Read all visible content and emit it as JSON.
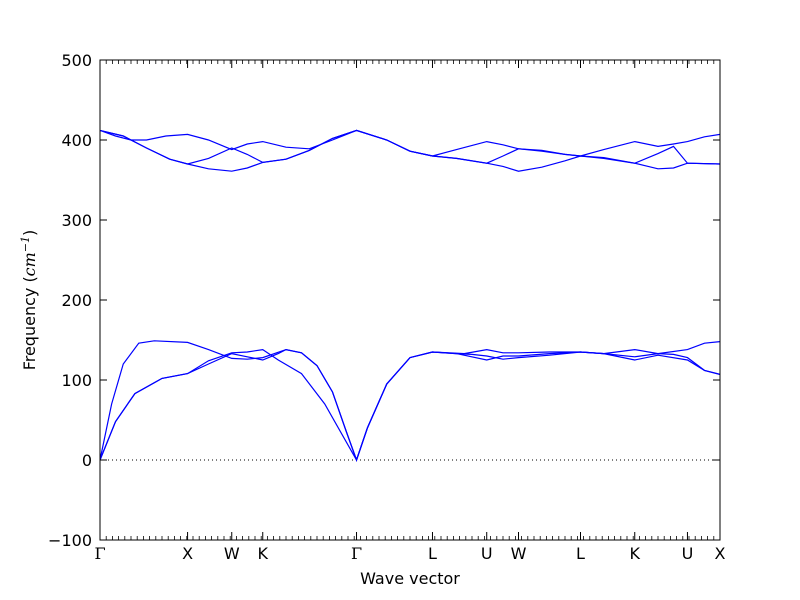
{
  "chart_data": {
    "type": "line",
    "title": "",
    "xlabel": "Wave vector",
    "ylabel": {
      "text": "Frequency (",
      "unit_base": "cm",
      "unit_exp": "−1",
      "close": ")"
    },
    "ylim": [
      -100,
      500
    ],
    "yticks": [
      -100,
      0,
      100,
      200,
      300,
      400,
      500
    ],
    "xlim": [
      0,
      800
    ],
    "zero_line": true,
    "line_color": "#0000ff",
    "x_points": [
      {
        "label": "Γ",
        "x": 0
      },
      {
        "label": "X",
        "x": 113
      },
      {
        "label": "W",
        "x": 170
      },
      {
        "label": "K",
        "x": 210
      },
      {
        "label": "Γ",
        "x": 331
      },
      {
        "label": "L",
        "x": 429
      },
      {
        "label": "U",
        "x": 499
      },
      {
        "label": "W",
        "x": 540
      },
      {
        "label": "L",
        "x": 620
      },
      {
        "label": "K",
        "x": 690
      },
      {
        "label": "U",
        "x": 758
      },
      {
        "label": "X",
        "x": 800
      }
    ],
    "series": [
      {
        "points": [
          [
            0,
            0
          ],
          [
            20,
            48
          ],
          [
            45,
            83
          ],
          [
            80,
            102
          ],
          [
            113,
            108
          ],
          [
            140,
            120
          ],
          [
            170,
            133
          ],
          [
            190,
            129
          ],
          [
            210,
            125
          ],
          [
            230,
            133
          ],
          [
            240,
            138
          ],
          [
            260,
            134
          ],
          [
            280,
            118
          ],
          [
            300,
            85
          ],
          [
            318,
            35
          ],
          [
            331,
            0
          ],
          [
            345,
            40
          ],
          [
            370,
            95
          ],
          [
            400,
            128
          ],
          [
            429,
            135
          ],
          [
            460,
            133
          ],
          [
            499,
            125
          ],
          [
            520,
            130
          ],
          [
            540,
            130
          ],
          [
            580,
            133
          ],
          [
            620,
            135
          ],
          [
            650,
            133
          ],
          [
            690,
            125
          ],
          [
            720,
            131
          ],
          [
            758,
            125
          ],
          [
            780,
            112
          ],
          [
            800,
            107
          ]
        ]
      },
      {
        "points": [
          [
            0,
            0
          ],
          [
            20,
            48
          ],
          [
            45,
            83
          ],
          [
            80,
            102
          ],
          [
            113,
            108
          ],
          [
            140,
            124
          ],
          [
            170,
            134
          ],
          [
            190,
            135
          ],
          [
            210,
            138
          ],
          [
            230,
            125
          ],
          [
            260,
            108
          ],
          [
            290,
            70
          ],
          [
            331,
            0
          ],
          [
            345,
            40
          ],
          [
            370,
            95
          ],
          [
            400,
            128
          ],
          [
            429,
            135
          ],
          [
            460,
            133
          ],
          [
            480,
            132
          ],
          [
            499,
            130
          ],
          [
            520,
            126
          ],
          [
            540,
            128
          ],
          [
            580,
            131
          ],
          [
            620,
            135
          ],
          [
            650,
            133
          ],
          [
            690,
            129
          ],
          [
            720,
            133
          ],
          [
            740,
            132
          ],
          [
            758,
            128
          ],
          [
            780,
            112
          ],
          [
            800,
            107
          ]
        ]
      },
      {
        "points": [
          [
            0,
            0
          ],
          [
            15,
            70
          ],
          [
            30,
            120
          ],
          [
            50,
            146
          ],
          [
            70,
            149
          ],
          [
            113,
            147
          ],
          [
            140,
            138
          ],
          [
            170,
            127
          ],
          [
            190,
            126
          ],
          [
            210,
            128
          ],
          [
            240,
            138
          ],
          [
            260,
            134
          ],
          [
            280,
            118
          ],
          [
            300,
            85
          ],
          [
            318,
            35
          ],
          [
            331,
            0
          ],
          [
            345,
            40
          ],
          [
            370,
            95
          ],
          [
            400,
            128
          ],
          [
            429,
            135
          ],
          [
            470,
            133
          ],
          [
            499,
            138
          ],
          [
            520,
            134
          ],
          [
            540,
            134
          ],
          [
            580,
            135
          ],
          [
            620,
            135
          ],
          [
            650,
            133
          ],
          [
            690,
            138
          ],
          [
            720,
            133
          ],
          [
            758,
            138
          ],
          [
            780,
            146
          ],
          [
            800,
            148
          ]
        ]
      },
      {
        "points": [
          [
            0,
            412
          ],
          [
            30,
            405
          ],
          [
            60,
            390
          ],
          [
            90,
            376
          ],
          [
            113,
            370
          ],
          [
            140,
            364
          ],
          [
            170,
            361
          ],
          [
            190,
            365
          ],
          [
            210,
            372
          ],
          [
            240,
            376
          ],
          [
            270,
            387
          ],
          [
            300,
            402
          ],
          [
            331,
            412
          ],
          [
            370,
            400
          ],
          [
            400,
            386
          ],
          [
            429,
            380
          ],
          [
            460,
            377
          ],
          [
            499,
            371
          ],
          [
            520,
            367
          ],
          [
            540,
            361
          ],
          [
            570,
            366
          ],
          [
            600,
            374
          ],
          [
            620,
            380
          ],
          [
            650,
            378
          ],
          [
            690,
            371
          ],
          [
            720,
            364
          ],
          [
            740,
            365
          ],
          [
            758,
            371
          ],
          [
            800,
            370
          ]
        ]
      },
      {
        "points": [
          [
            0,
            412
          ],
          [
            30,
            405
          ],
          [
            60,
            390
          ],
          [
            90,
            376
          ],
          [
            113,
            370
          ],
          [
            140,
            377
          ],
          [
            170,
            390
          ],
          [
            190,
            382
          ],
          [
            210,
            372
          ],
          [
            240,
            376
          ],
          [
            270,
            387
          ],
          [
            300,
            402
          ],
          [
            331,
            412
          ],
          [
            370,
            400
          ],
          [
            400,
            386
          ],
          [
            429,
            380
          ],
          [
            460,
            377
          ],
          [
            499,
            371
          ],
          [
            520,
            380
          ],
          [
            540,
            389
          ],
          [
            570,
            386
          ],
          [
            600,
            382
          ],
          [
            620,
            380
          ],
          [
            650,
            377
          ],
          [
            690,
            371
          ],
          [
            720,
            383
          ],
          [
            740,
            392
          ],
          [
            758,
            371
          ],
          [
            800,
            370
          ]
        ]
      },
      {
        "points": [
          [
            0,
            412
          ],
          [
            20,
            405
          ],
          [
            40,
            400
          ],
          [
            60,
            400
          ],
          [
            85,
            405
          ],
          [
            113,
            407
          ],
          [
            140,
            400
          ],
          [
            170,
            388
          ],
          [
            190,
            395
          ],
          [
            210,
            398
          ],
          [
            240,
            391
          ],
          [
            270,
            389
          ],
          [
            300,
            400
          ],
          [
            331,
            412
          ],
          [
            370,
            400
          ],
          [
            400,
            386
          ],
          [
            429,
            380
          ],
          [
            460,
            388
          ],
          [
            499,
            398
          ],
          [
            520,
            394
          ],
          [
            540,
            389
          ],
          [
            570,
            387
          ],
          [
            600,
            382
          ],
          [
            620,
            380
          ],
          [
            650,
            388
          ],
          [
            690,
            398
          ],
          [
            720,
            392
          ],
          [
            740,
            395
          ],
          [
            758,
            398
          ],
          [
            780,
            404
          ],
          [
            800,
            407
          ]
        ]
      }
    ]
  }
}
